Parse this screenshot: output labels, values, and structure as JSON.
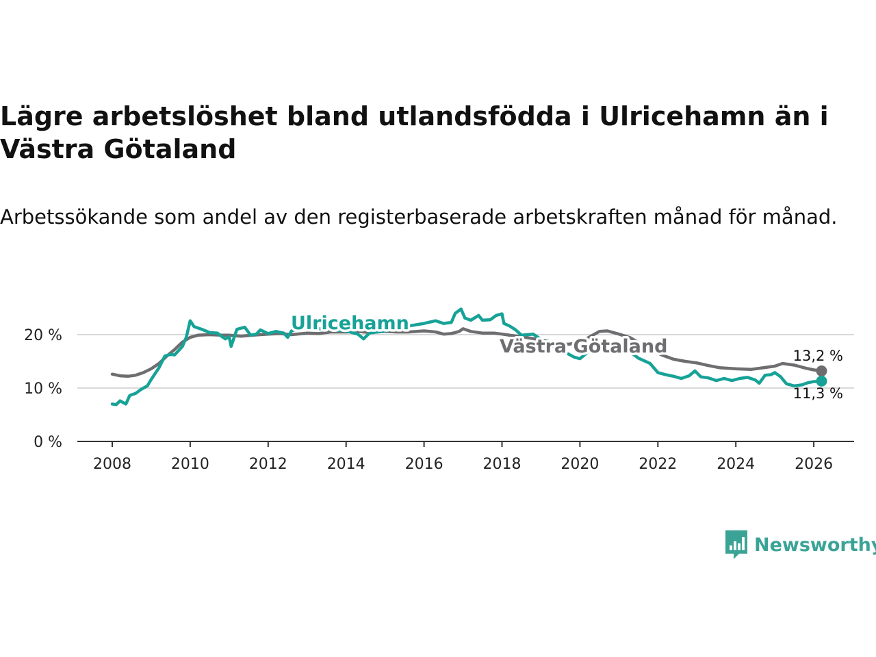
{
  "title": "Lägre arbetslöshet bland utlandsfödda i Ulricehamn än i Västra Götaland",
  "subtitle": "Arbetssökande som andel av den registerbaserade arbetskraften månad för månad.",
  "brand": {
    "name": "Newsworthy",
    "color": "#3aa396"
  },
  "chart_data": {
    "type": "line",
    "xlim": [
      2008,
      2027.1
    ],
    "ylim": [
      0,
      25
    ],
    "x_ticks": [
      2008,
      2010,
      2012,
      2014,
      2016,
      2018,
      2020,
      2022,
      2024,
      2026
    ],
    "y_ticks": [
      0,
      10,
      20
    ],
    "y_tick_labels": [
      "0 %",
      "10 %",
      "20 %"
    ],
    "grid": true,
    "series": [
      {
        "name": "Västra Götaland",
        "label": "Västra Götaland",
        "color": "#6e6d70",
        "end_label": "13,2 %",
        "points": [
          [
            2008.0,
            12.6
          ],
          [
            2008.2,
            12.3
          ],
          [
            2008.4,
            12.2
          ],
          [
            2008.6,
            12.4
          ],
          [
            2008.8,
            12.9
          ],
          [
            2009.0,
            13.6
          ],
          [
            2009.2,
            14.6
          ],
          [
            2009.4,
            16.0
          ],
          [
            2009.6,
            17.2
          ],
          [
            2009.8,
            18.6
          ],
          [
            2010.0,
            19.5
          ],
          [
            2010.2,
            19.9
          ],
          [
            2010.5,
            20.0
          ],
          [
            2010.8,
            19.9
          ],
          [
            2011.0,
            19.9
          ],
          [
            2011.3,
            19.7
          ],
          [
            2011.6,
            19.9
          ],
          [
            2012.0,
            20.1
          ],
          [
            2012.3,
            20.2
          ],
          [
            2012.6,
            20.0
          ],
          [
            2013.0,
            20.3
          ],
          [
            2013.3,
            20.2
          ],
          [
            2013.6,
            20.5
          ],
          [
            2014.0,
            20.5
          ],
          [
            2014.3,
            20.6
          ],
          [
            2014.6,
            20.4
          ],
          [
            2015.0,
            20.6
          ],
          [
            2015.3,
            20.5
          ],
          [
            2015.6,
            20.5
          ],
          [
            2016.0,
            20.7
          ],
          [
            2016.3,
            20.5
          ],
          [
            2016.5,
            20.1
          ],
          [
            2016.7,
            20.2
          ],
          [
            2016.9,
            20.6
          ],
          [
            2017.0,
            21.1
          ],
          [
            2017.2,
            20.6
          ],
          [
            2017.5,
            20.3
          ],
          [
            2017.8,
            20.3
          ],
          [
            2018.0,
            20.1
          ],
          [
            2018.3,
            19.8
          ],
          [
            2018.6,
            19.5
          ],
          [
            2019.0,
            19.0
          ],
          [
            2019.4,
            18.4
          ],
          [
            2019.7,
            18.2
          ],
          [
            2020.0,
            18.5
          ],
          [
            2020.3,
            19.8
          ],
          [
            2020.5,
            20.6
          ],
          [
            2020.7,
            20.7
          ],
          [
            2021.0,
            20.1
          ],
          [
            2021.3,
            19.4
          ],
          [
            2021.6,
            18.1
          ],
          [
            2021.9,
            16.9
          ],
          [
            2022.1,
            16.2
          ],
          [
            2022.4,
            15.4
          ],
          [
            2022.7,
            15.0
          ],
          [
            2023.0,
            14.7
          ],
          [
            2023.3,
            14.2
          ],
          [
            2023.6,
            13.8
          ],
          [
            2024.0,
            13.6
          ],
          [
            2024.4,
            13.5
          ],
          [
            2024.7,
            13.8
          ],
          [
            2025.0,
            14.1
          ],
          [
            2025.2,
            14.6
          ],
          [
            2025.5,
            14.3
          ],
          [
            2025.8,
            13.7
          ],
          [
            2026.0,
            13.4
          ],
          [
            2026.2,
            13.2
          ]
        ]
      },
      {
        "name": "Ulricehamn",
        "label": "Ulricehamn",
        "color": "#17a297",
        "end_label": "11,3 %",
        "points": [
          [
            2008.0,
            7.0
          ],
          [
            2008.1,
            6.9
          ],
          [
            2008.2,
            7.6
          ],
          [
            2008.35,
            7.0
          ],
          [
            2008.45,
            8.6
          ],
          [
            2008.6,
            9.0
          ],
          [
            2008.75,
            9.8
          ],
          [
            2008.9,
            10.4
          ],
          [
            2009.0,
            11.6
          ],
          [
            2009.2,
            13.8
          ],
          [
            2009.35,
            16.0
          ],
          [
            2009.5,
            16.3
          ],
          [
            2009.6,
            16.2
          ],
          [
            2009.8,
            17.8
          ],
          [
            2009.9,
            19.5
          ],
          [
            2010.0,
            22.6
          ],
          [
            2010.1,
            21.5
          ],
          [
            2010.3,
            21.0
          ],
          [
            2010.5,
            20.4
          ],
          [
            2010.7,
            20.3
          ],
          [
            2010.8,
            19.7
          ],
          [
            2010.9,
            19.2
          ],
          [
            2011.0,
            19.6
          ],
          [
            2011.05,
            17.8
          ],
          [
            2011.2,
            21.0
          ],
          [
            2011.4,
            21.4
          ],
          [
            2011.55,
            19.9
          ],
          [
            2011.7,
            20.1
          ],
          [
            2011.8,
            20.9
          ],
          [
            2012.0,
            20.2
          ],
          [
            2012.2,
            20.6
          ],
          [
            2012.4,
            20.3
          ],
          [
            2012.5,
            19.5
          ],
          [
            2012.6,
            20.7
          ],
          [
            2012.8,
            21.2
          ],
          [
            2013.0,
            21.3
          ],
          [
            2013.5,
            21.0
          ],
          [
            2014.0,
            20.7
          ],
          [
            2014.3,
            20.1
          ],
          [
            2014.45,
            19.2
          ],
          [
            2014.6,
            20.3
          ],
          [
            2015.0,
            20.7
          ],
          [
            2015.5,
            21.5
          ],
          [
            2016.0,
            22.1
          ],
          [
            2016.3,
            22.6
          ],
          [
            2016.5,
            22.1
          ],
          [
            2016.7,
            22.3
          ],
          [
            2016.8,
            24.0
          ],
          [
            2016.95,
            24.8
          ],
          [
            2017.05,
            23.1
          ],
          [
            2017.2,
            22.7
          ],
          [
            2017.4,
            23.6
          ],
          [
            2017.5,
            22.7
          ],
          [
            2017.7,
            22.8
          ],
          [
            2017.85,
            23.6
          ],
          [
            2018.0,
            23.9
          ],
          [
            2018.05,
            22.1
          ],
          [
            2018.2,
            21.6
          ],
          [
            2018.35,
            20.9
          ],
          [
            2018.5,
            19.9
          ],
          [
            2018.8,
            20.1
          ],
          [
            2019.0,
            19.1
          ],
          [
            2019.3,
            17.9
          ],
          [
            2019.6,
            16.8
          ],
          [
            2019.85,
            15.8
          ],
          [
            2020.0,
            15.5
          ],
          [
            2020.2,
            16.7
          ],
          [
            2020.4,
            18.1
          ],
          [
            2020.7,
            18.3
          ],
          [
            2021.0,
            17.8
          ],
          [
            2021.3,
            16.7
          ],
          [
            2021.5,
            15.6
          ],
          [
            2021.8,
            14.6
          ],
          [
            2022.0,
            12.9
          ],
          [
            2022.2,
            12.5
          ],
          [
            2022.4,
            12.2
          ],
          [
            2022.6,
            11.8
          ],
          [
            2022.8,
            12.3
          ],
          [
            2022.95,
            13.2
          ],
          [
            2023.1,
            12.1
          ],
          [
            2023.3,
            11.9
          ],
          [
            2023.5,
            11.4
          ],
          [
            2023.7,
            11.8
          ],
          [
            2023.9,
            11.4
          ],
          [
            2024.1,
            11.8
          ],
          [
            2024.3,
            12.0
          ],
          [
            2024.5,
            11.5
          ],
          [
            2024.6,
            10.9
          ],
          [
            2024.75,
            12.4
          ],
          [
            2024.9,
            12.5
          ],
          [
            2025.0,
            12.9
          ],
          [
            2025.15,
            12.1
          ],
          [
            2025.3,
            10.8
          ],
          [
            2025.5,
            10.4
          ],
          [
            2025.7,
            10.6
          ],
          [
            2025.85,
            11.0
          ],
          [
            2026.0,
            11.2
          ],
          [
            2026.2,
            11.3
          ]
        ]
      }
    ]
  }
}
